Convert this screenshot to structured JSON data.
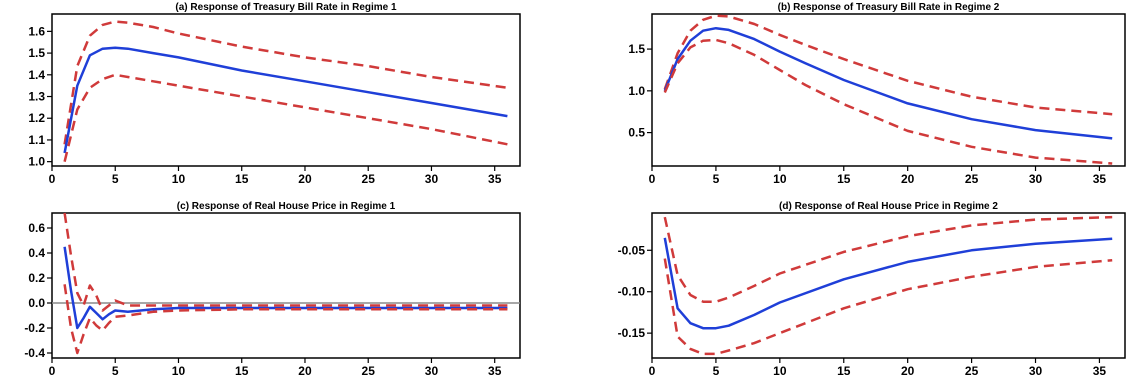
{
  "chart_data": [
    {
      "type": "line",
      "title": "(a) Response of Treasury Bill Rate in Regime 1",
      "xlim": [
        0,
        37
      ],
      "ylim": [
        0.98,
        1.68
      ],
      "xticks": [
        0,
        5,
        10,
        15,
        20,
        25,
        30,
        35
      ],
      "yticks": [
        1.0,
        1.1,
        1.2,
        1.3,
        1.4,
        1.5,
        1.6
      ],
      "ytick_labels": [
        "1.0",
        "1.1",
        "1.2",
        "1.3",
        "1.4",
        "1.5",
        "1.6"
      ],
      "zero_line": false,
      "series": [
        {
          "role": "upper",
          "style": "dashed",
          "color": "#d03a3a",
          "x": [
            1,
            2,
            3,
            4,
            5,
            6,
            8,
            10,
            15,
            20,
            25,
            30,
            36
          ],
          "y": [
            1.08,
            1.44,
            1.58,
            1.63,
            1.645,
            1.64,
            1.62,
            1.59,
            1.53,
            1.48,
            1.44,
            1.39,
            1.34
          ]
        },
        {
          "role": "estimate",
          "style": "solid",
          "color": "#1f3fd8",
          "x": [
            1,
            2,
            3,
            4,
            5,
            6,
            8,
            10,
            15,
            20,
            25,
            30,
            36
          ],
          "y": [
            1.04,
            1.35,
            1.49,
            1.52,
            1.525,
            1.52,
            1.5,
            1.48,
            1.42,
            1.37,
            1.32,
            1.27,
            1.21
          ]
        },
        {
          "role": "lower",
          "style": "dashed",
          "color": "#d03a3a",
          "x": [
            1,
            2,
            3,
            4,
            5,
            6,
            8,
            10,
            15,
            20,
            25,
            30,
            36
          ],
          "y": [
            1.0,
            1.24,
            1.34,
            1.38,
            1.4,
            1.39,
            1.37,
            1.35,
            1.3,
            1.25,
            1.2,
            1.15,
            1.08
          ]
        }
      ]
    },
    {
      "type": "line",
      "title": "(b) Response of Treasury Bill Rate in Regime 2",
      "xlim": [
        0,
        37
      ],
      "ylim": [
        0.1,
        1.92
      ],
      "xticks": [
        0,
        5,
        10,
        15,
        20,
        25,
        30,
        35
      ],
      "yticks": [
        0.5,
        1.0,
        1.5
      ],
      "ytick_labels": [
        "0.5",
        "1.0",
        "1.5"
      ],
      "zero_line": false,
      "series": [
        {
          "role": "upper",
          "style": "dashed",
          "color": "#d03a3a",
          "x": [
            1,
            2,
            3,
            4,
            5,
            6,
            8,
            10,
            12,
            15,
            20,
            25,
            30,
            36
          ],
          "y": [
            1.02,
            1.45,
            1.72,
            1.85,
            1.9,
            1.89,
            1.8,
            1.67,
            1.55,
            1.38,
            1.12,
            0.93,
            0.8,
            0.72
          ]
        },
        {
          "role": "estimate",
          "style": "solid",
          "color": "#1f3fd8",
          "x": [
            1,
            2,
            3,
            4,
            5,
            6,
            8,
            10,
            12,
            15,
            20,
            25,
            30,
            36
          ],
          "y": [
            1.0,
            1.38,
            1.6,
            1.72,
            1.75,
            1.73,
            1.62,
            1.47,
            1.33,
            1.13,
            0.85,
            0.66,
            0.53,
            0.43
          ]
        },
        {
          "role": "lower",
          "style": "dashed",
          "color": "#d03a3a",
          "x": [
            1,
            2,
            3,
            4,
            5,
            6,
            8,
            10,
            12,
            15,
            20,
            25,
            30,
            36
          ],
          "y": [
            0.98,
            1.33,
            1.52,
            1.6,
            1.61,
            1.57,
            1.43,
            1.25,
            1.07,
            0.84,
            0.52,
            0.33,
            0.2,
            0.13
          ]
        }
      ]
    },
    {
      "type": "line",
      "title": "(c) Response of Real House Price in Regime 1",
      "xlim": [
        0,
        37
      ],
      "ylim": [
        -0.44,
        0.72
      ],
      "xticks": [
        0,
        5,
        10,
        15,
        20,
        25,
        30,
        35
      ],
      "yticks": [
        -0.4,
        -0.2,
        0.0,
        0.2,
        0.4,
        0.6
      ],
      "ytick_labels": [
        "-0.4",
        "-0.2",
        "0.0",
        "0.2",
        "0.4",
        "0.6"
      ],
      "zero_line": true,
      "series": [
        {
          "role": "upper",
          "style": "dashed",
          "color": "#d03a3a",
          "x": [
            1,
            1.5,
            2,
            2.5,
            3,
            3.5,
            4,
            4.5,
            5,
            6,
            8,
            10,
            15,
            20,
            36
          ],
          "y": [
            0.72,
            0.38,
            0.08,
            -0.02,
            0.14,
            0.06,
            -0.06,
            -0.02,
            0.02,
            -0.02,
            -0.02,
            -0.02,
            -0.02,
            -0.02,
            -0.02
          ]
        },
        {
          "role": "estimate",
          "style": "solid",
          "color": "#1f3fd8",
          "x": [
            1,
            1.5,
            2,
            2.5,
            3,
            3.5,
            4,
            4.5,
            5,
            6,
            8,
            10,
            15,
            20,
            36
          ],
          "y": [
            0.45,
            0.1,
            -0.2,
            -0.12,
            -0.03,
            -0.08,
            -0.13,
            -0.09,
            -0.06,
            -0.07,
            -0.05,
            -0.04,
            -0.04,
            -0.04,
            -0.04
          ]
        },
        {
          "role": "lower",
          "style": "dashed",
          "color": "#d03a3a",
          "x": [
            1,
            1.5,
            2,
            2.5,
            3,
            3.5,
            4,
            4.5,
            5,
            6,
            8,
            10,
            15,
            20,
            36
          ],
          "y": [
            0.15,
            -0.2,
            -0.4,
            -0.25,
            -0.12,
            -0.18,
            -0.22,
            -0.16,
            -0.11,
            -0.1,
            -0.07,
            -0.06,
            -0.05,
            -0.05,
            -0.05
          ]
        }
      ]
    },
    {
      "type": "line",
      "title": "(d) Response of Real House Price in Regime 2",
      "xlim": [
        0,
        37
      ],
      "ylim": [
        -0.18,
        -0.005
      ],
      "xticks": [
        0,
        5,
        10,
        15,
        20,
        25,
        30,
        35
      ],
      "yticks": [
        -0.15,
        -0.1,
        -0.05
      ],
      "ytick_labels": [
        "-0.15",
        "-0.10",
        "-0.05"
      ],
      "zero_line": false,
      "series": [
        {
          "role": "upper",
          "style": "dashed",
          "color": "#d03a3a",
          "x": [
            1,
            2,
            3,
            4,
            5,
            6,
            8,
            10,
            15,
            20,
            25,
            30,
            36
          ],
          "y": [
            -0.01,
            -0.08,
            -0.104,
            -0.112,
            -0.112,
            -0.107,
            -0.093,
            -0.078,
            -0.052,
            -0.033,
            -0.02,
            -0.013,
            -0.01
          ]
        },
        {
          "role": "estimate",
          "style": "solid",
          "color": "#1f3fd8",
          "x": [
            1,
            2,
            3,
            4,
            5,
            6,
            8,
            10,
            15,
            20,
            25,
            30,
            36
          ],
          "y": [
            -0.035,
            -0.12,
            -0.138,
            -0.144,
            -0.144,
            -0.141,
            -0.128,
            -0.113,
            -0.085,
            -0.064,
            -0.05,
            -0.042,
            -0.036
          ]
        },
        {
          "role": "lower",
          "style": "dashed",
          "color": "#d03a3a",
          "x": [
            1,
            2,
            3,
            4,
            5,
            6,
            8,
            10,
            15,
            20,
            25,
            30,
            36
          ],
          "y": [
            -0.06,
            -0.154,
            -0.169,
            -0.175,
            -0.175,
            -0.171,
            -0.162,
            -0.15,
            -0.12,
            -0.097,
            -0.082,
            -0.07,
            -0.062
          ]
        }
      ]
    }
  ]
}
